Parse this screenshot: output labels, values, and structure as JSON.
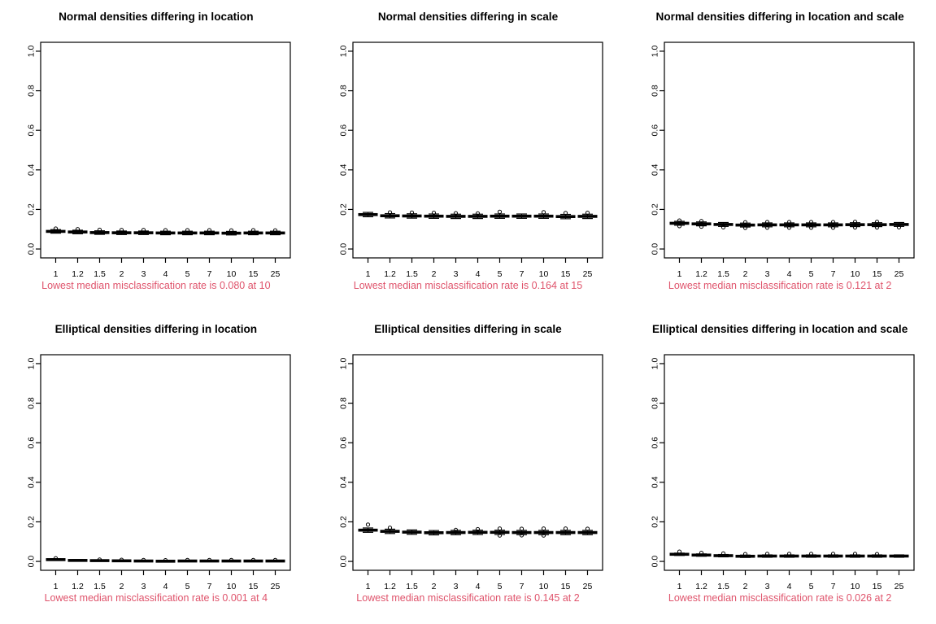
{
  "figure": {
    "rows": 2,
    "cols": 3,
    "background": "#ffffff"
  },
  "colors": {
    "subtitle": "#DF536B",
    "axis": "#000000",
    "box_fill": "#777777",
    "box_stroke": "#000000",
    "median": "#000000",
    "text": "#000000"
  },
  "chart_data": [
    {
      "type": "boxplot",
      "title": "Normal densities differing in location",
      "subtitle": "Lowest median misclassification rate is 0.080 at 10",
      "lowest": {
        "rate": "0.080",
        "at": "10"
      },
      "categories": [
        "1",
        "1.2",
        "1.5",
        "2",
        "3",
        "4",
        "5",
        "7",
        "10",
        "15",
        "25"
      ],
      "ylim": [
        0,
        1
      ],
      "ytick_labels": [
        "0.0",
        "0.2",
        "0.4",
        "0.6",
        "0.8",
        "1.0"
      ],
      "yticks": [
        0,
        0.2,
        0.4,
        0.6,
        0.8,
        1.0
      ],
      "grid": false,
      "boxes": [
        {
          "med": 0.089,
          "q1": 0.086,
          "q3": 0.092,
          "lo": 0.08,
          "hi": 0.098,
          "out": [
            0.103
          ]
        },
        {
          "med": 0.086,
          "q1": 0.083,
          "q3": 0.089,
          "lo": 0.077,
          "hi": 0.095,
          "out": [
            0.1
          ]
        },
        {
          "med": 0.083,
          "q1": 0.08,
          "q3": 0.086,
          "lo": 0.074,
          "hi": 0.092,
          "out": [
            0.097
          ]
        },
        {
          "med": 0.082,
          "q1": 0.079,
          "q3": 0.085,
          "lo": 0.073,
          "hi": 0.091,
          "out": [
            0.096
          ]
        },
        {
          "med": 0.082,
          "q1": 0.079,
          "q3": 0.085,
          "lo": 0.073,
          "hi": 0.091,
          "out": [
            0.096
          ]
        },
        {
          "med": 0.081,
          "q1": 0.078,
          "q3": 0.084,
          "lo": 0.072,
          "hi": 0.09,
          "out": [
            0.095
          ]
        },
        {
          "med": 0.081,
          "q1": 0.078,
          "q3": 0.084,
          "lo": 0.072,
          "hi": 0.09,
          "out": [
            0.095
          ]
        },
        {
          "med": 0.081,
          "q1": 0.078,
          "q3": 0.084,
          "lo": 0.072,
          "hi": 0.09,
          "out": [
            0.095
          ]
        },
        {
          "med": 0.08,
          "q1": 0.077,
          "q3": 0.083,
          "lo": 0.071,
          "hi": 0.089,
          "out": [
            0.094
          ]
        },
        {
          "med": 0.081,
          "q1": 0.078,
          "q3": 0.084,
          "lo": 0.072,
          "hi": 0.09,
          "out": [
            0.095
          ]
        },
        {
          "med": 0.081,
          "q1": 0.078,
          "q3": 0.084,
          "lo": 0.072,
          "hi": 0.09,
          "out": [
            0.094
          ]
        }
      ]
    },
    {
      "type": "boxplot",
      "title": "Normal densities differing in scale",
      "subtitle": "Lowest median misclassification rate is 0.164 at 15",
      "lowest": {
        "rate": "0.164",
        "at": "15"
      },
      "categories": [
        "1",
        "1.2",
        "1.5",
        "2",
        "3",
        "4",
        "5",
        "7",
        "10",
        "15",
        "25"
      ],
      "ylim": [
        0,
        1
      ],
      "ytick_labels": [
        "0.0",
        "0.2",
        "0.4",
        "0.6",
        "0.8",
        "1.0"
      ],
      "yticks": [
        0,
        0.2,
        0.4,
        0.6,
        0.8,
        1.0
      ],
      "grid": false,
      "boxes": [
        {
          "med": 0.174,
          "q1": 0.17,
          "q3": 0.178,
          "lo": 0.163,
          "hi": 0.185,
          "out": []
        },
        {
          "med": 0.168,
          "q1": 0.164,
          "q3": 0.172,
          "lo": 0.157,
          "hi": 0.179,
          "out": [
            0.185
          ]
        },
        {
          "med": 0.167,
          "q1": 0.163,
          "q3": 0.171,
          "lo": 0.156,
          "hi": 0.178,
          "out": [
            0.184
          ]
        },
        {
          "med": 0.166,
          "q1": 0.162,
          "q3": 0.17,
          "lo": 0.155,
          "hi": 0.177,
          "out": [
            0.183
          ]
        },
        {
          "med": 0.165,
          "q1": 0.161,
          "q3": 0.169,
          "lo": 0.154,
          "hi": 0.176,
          "out": [
            0.181
          ]
        },
        {
          "med": 0.165,
          "q1": 0.161,
          "q3": 0.169,
          "lo": 0.154,
          "hi": 0.176,
          "out": [
            0.18
          ]
        },
        {
          "med": 0.166,
          "q1": 0.162,
          "q3": 0.17,
          "lo": 0.155,
          "hi": 0.177,
          "out": [
            0.188
          ]
        },
        {
          "med": 0.166,
          "q1": 0.162,
          "q3": 0.17,
          "lo": 0.155,
          "hi": 0.177,
          "out": []
        },
        {
          "med": 0.166,
          "q1": 0.162,
          "q3": 0.17,
          "lo": 0.155,
          "hi": 0.177,
          "out": [
            0.186
          ]
        },
        {
          "med": 0.164,
          "q1": 0.16,
          "q3": 0.168,
          "lo": 0.153,
          "hi": 0.175,
          "out": [
            0.182
          ]
        },
        {
          "med": 0.165,
          "q1": 0.161,
          "q3": 0.169,
          "lo": 0.154,
          "hi": 0.176,
          "out": [
            0.183
          ]
        }
      ]
    },
    {
      "type": "boxplot",
      "title": "Normal densities differing in location and scale",
      "subtitle": "Lowest median misclassification rate is 0.121 at 2",
      "lowest": {
        "rate": "0.121",
        "at": "2"
      },
      "categories": [
        "1",
        "1.2",
        "1.5",
        "2",
        "3",
        "4",
        "5",
        "7",
        "10",
        "15",
        "25"
      ],
      "ylim": [
        0,
        1
      ],
      "ytick_labels": [
        "0.0",
        "0.2",
        "0.4",
        "0.6",
        "0.8",
        "1.0"
      ],
      "yticks": [
        0,
        0.2,
        0.4,
        0.6,
        0.8,
        1.0
      ],
      "grid": false,
      "boxes": [
        {
          "med": 0.13,
          "q1": 0.126,
          "q3": 0.134,
          "lo": 0.12,
          "hi": 0.14,
          "out": [
            0.144,
            0.116
          ]
        },
        {
          "med": 0.127,
          "q1": 0.123,
          "q3": 0.131,
          "lo": 0.117,
          "hi": 0.137,
          "out": [
            0.141,
            0.113
          ]
        },
        {
          "med": 0.124,
          "q1": 0.12,
          "q3": 0.128,
          "lo": 0.114,
          "hi": 0.134,
          "out": [
            0.11
          ]
        },
        {
          "med": 0.121,
          "q1": 0.117,
          "q3": 0.125,
          "lo": 0.111,
          "hi": 0.131,
          "out": [
            0.135,
            0.107
          ]
        },
        {
          "med": 0.122,
          "q1": 0.118,
          "q3": 0.126,
          "lo": 0.112,
          "hi": 0.132,
          "out": [
            0.136,
            0.108
          ]
        },
        {
          "med": 0.122,
          "q1": 0.118,
          "q3": 0.126,
          "lo": 0.112,
          "hi": 0.132,
          "out": [
            0.136,
            0.108
          ]
        },
        {
          "med": 0.122,
          "q1": 0.118,
          "q3": 0.126,
          "lo": 0.112,
          "hi": 0.132,
          "out": [
            0.136,
            0.108
          ]
        },
        {
          "med": 0.122,
          "q1": 0.118,
          "q3": 0.126,
          "lo": 0.112,
          "hi": 0.132,
          "out": [
            0.136,
            0.108
          ]
        },
        {
          "med": 0.123,
          "q1": 0.119,
          "q3": 0.127,
          "lo": 0.113,
          "hi": 0.133,
          "out": [
            0.137,
            0.109
          ]
        },
        {
          "med": 0.123,
          "q1": 0.119,
          "q3": 0.127,
          "lo": 0.113,
          "hi": 0.133,
          "out": [
            0.137,
            0.109
          ]
        },
        {
          "med": 0.124,
          "q1": 0.12,
          "q3": 0.128,
          "lo": 0.114,
          "hi": 0.134,
          "out": [
            0.11
          ]
        }
      ]
    },
    {
      "type": "boxplot",
      "title": "Elliptical densities differing in location",
      "subtitle": "Lowest median misclassification rate is 0.001 at 4",
      "lowest": {
        "rate": "0.001",
        "at": "4"
      },
      "categories": [
        "1",
        "1.2",
        "1.5",
        "2",
        "3",
        "4",
        "5",
        "7",
        "10",
        "15",
        "25"
      ],
      "ylim": [
        0,
        1
      ],
      "ytick_labels": [
        "0.0",
        "0.2",
        "0.4",
        "0.6",
        "0.8",
        "1.0"
      ],
      "yticks": [
        0,
        0.2,
        0.4,
        0.6,
        0.8,
        1.0
      ],
      "grid": false,
      "boxes": [
        {
          "med": 0.009,
          "q1": 0.007,
          "q3": 0.011,
          "lo": 0.005,
          "hi": 0.013,
          "out": [
            0.016
          ]
        },
        {
          "med": 0.005,
          "q1": 0.004,
          "q3": 0.007,
          "lo": 0.002,
          "hi": 0.009,
          "out": []
        },
        {
          "med": 0.004,
          "q1": 0.003,
          "q3": 0.005,
          "lo": 0.001,
          "hi": 0.007,
          "out": [
            0.009
          ]
        },
        {
          "med": 0.003,
          "q1": 0.002,
          "q3": 0.004,
          "lo": 0.001,
          "hi": 0.006,
          "out": [
            0.008
          ]
        },
        {
          "med": 0.002,
          "q1": 0.001,
          "q3": 0.004,
          "lo": 0.0,
          "hi": 0.005,
          "out": [
            0.007
          ]
        },
        {
          "med": 0.001,
          "q1": 0.0,
          "q3": 0.002,
          "lo": 0.0,
          "hi": 0.004,
          "out": [
            0.006
          ]
        },
        {
          "med": 0.002,
          "q1": 0.001,
          "q3": 0.004,
          "lo": 0.0,
          "hi": 0.005,
          "out": [
            0.007
          ]
        },
        {
          "med": 0.002,
          "q1": 0.001,
          "q3": 0.004,
          "lo": 0.0,
          "hi": 0.005,
          "out": [
            0.007
          ]
        },
        {
          "med": 0.002,
          "q1": 0.001,
          "q3": 0.003,
          "lo": 0.0,
          "hi": 0.005,
          "out": [
            0.007
          ]
        },
        {
          "med": 0.002,
          "q1": 0.001,
          "q3": 0.003,
          "lo": 0.0,
          "hi": 0.005,
          "out": [
            0.007
          ]
        },
        {
          "med": 0.002,
          "q1": 0.001,
          "q3": 0.003,
          "lo": 0.0,
          "hi": 0.005,
          "out": [
            0.007
          ]
        }
      ]
    },
    {
      "type": "boxplot",
      "title": "Elliptical densities differing in scale",
      "subtitle": "Lowest median misclassification rate is 0.145 at 2",
      "lowest": {
        "rate": "0.145",
        "at": "2"
      },
      "categories": [
        "1",
        "1.2",
        "1.5",
        "2",
        "3",
        "4",
        "5",
        "7",
        "10",
        "15",
        "25"
      ],
      "ylim": [
        0,
        1
      ],
      "ytick_labels": [
        "0.0",
        "0.2",
        "0.4",
        "0.6",
        "0.8",
        "1.0"
      ],
      "yticks": [
        0,
        0.2,
        0.4,
        0.6,
        0.8,
        1.0
      ],
      "grid": false,
      "boxes": [
        {
          "med": 0.158,
          "q1": 0.154,
          "q3": 0.162,
          "lo": 0.147,
          "hi": 0.169,
          "out": [
            0.186
          ]
        },
        {
          "med": 0.152,
          "q1": 0.148,
          "q3": 0.156,
          "lo": 0.141,
          "hi": 0.163,
          "out": [
            0.17
          ]
        },
        {
          "med": 0.148,
          "q1": 0.144,
          "q3": 0.152,
          "lo": 0.137,
          "hi": 0.159,
          "out": []
        },
        {
          "med": 0.145,
          "q1": 0.141,
          "q3": 0.149,
          "lo": 0.134,
          "hi": 0.156,
          "out": []
        },
        {
          "med": 0.146,
          "q1": 0.142,
          "q3": 0.15,
          "lo": 0.135,
          "hi": 0.157,
          "out": [
            0.159
          ]
        },
        {
          "med": 0.147,
          "q1": 0.143,
          "q3": 0.151,
          "lo": 0.136,
          "hi": 0.158,
          "out": [
            0.163
          ]
        },
        {
          "med": 0.147,
          "q1": 0.143,
          "q3": 0.151,
          "lo": 0.136,
          "hi": 0.158,
          "out": [
            0.166,
            0.131
          ]
        },
        {
          "med": 0.146,
          "q1": 0.142,
          "q3": 0.15,
          "lo": 0.135,
          "hi": 0.157,
          "out": [
            0.165,
            0.132
          ]
        },
        {
          "med": 0.146,
          "q1": 0.142,
          "q3": 0.15,
          "lo": 0.135,
          "hi": 0.157,
          "out": [
            0.166,
            0.131
          ]
        },
        {
          "med": 0.146,
          "q1": 0.142,
          "q3": 0.15,
          "lo": 0.135,
          "hi": 0.157,
          "out": [
            0.166
          ]
        },
        {
          "med": 0.146,
          "q1": 0.142,
          "q3": 0.15,
          "lo": 0.135,
          "hi": 0.157,
          "out": [
            0.165
          ]
        }
      ]
    },
    {
      "type": "boxplot",
      "title": "Elliptical densities differing in location and scale",
      "subtitle": "Lowest median misclassification rate is 0.026 at 2",
      "lowest": {
        "rate": "0.026",
        "at": "2"
      },
      "categories": [
        "1",
        "1.2",
        "1.5",
        "2",
        "3",
        "4",
        "5",
        "7",
        "10",
        "15",
        "25"
      ],
      "ylim": [
        0,
        1
      ],
      "ytick_labels": [
        "0.0",
        "0.2",
        "0.4",
        "0.6",
        "0.8",
        "1.0"
      ],
      "yticks": [
        0,
        0.2,
        0.4,
        0.6,
        0.8,
        1.0
      ],
      "grid": false,
      "boxes": [
        {
          "med": 0.036,
          "q1": 0.033,
          "q3": 0.039,
          "lo": 0.03,
          "hi": 0.042,
          "out": [
            0.049
          ]
        },
        {
          "med": 0.032,
          "q1": 0.029,
          "q3": 0.035,
          "lo": 0.026,
          "hi": 0.038,
          "out": [
            0.043
          ]
        },
        {
          "med": 0.029,
          "q1": 0.026,
          "q3": 0.032,
          "lo": 0.023,
          "hi": 0.035,
          "out": [
            0.04
          ]
        },
        {
          "med": 0.026,
          "q1": 0.023,
          "q3": 0.029,
          "lo": 0.02,
          "hi": 0.032,
          "out": [
            0.037
          ]
        },
        {
          "med": 0.027,
          "q1": 0.024,
          "q3": 0.03,
          "lo": 0.021,
          "hi": 0.033,
          "out": [
            0.038
          ]
        },
        {
          "med": 0.027,
          "q1": 0.024,
          "q3": 0.03,
          "lo": 0.021,
          "hi": 0.033,
          "out": [
            0.038
          ]
        },
        {
          "med": 0.027,
          "q1": 0.024,
          "q3": 0.03,
          "lo": 0.021,
          "hi": 0.033,
          "out": [
            0.038
          ]
        },
        {
          "med": 0.027,
          "q1": 0.024,
          "q3": 0.03,
          "lo": 0.021,
          "hi": 0.033,
          "out": [
            0.038
          ]
        },
        {
          "med": 0.027,
          "q1": 0.024,
          "q3": 0.03,
          "lo": 0.021,
          "hi": 0.033,
          "out": [
            0.038
          ]
        },
        {
          "med": 0.027,
          "q1": 0.024,
          "q3": 0.03,
          "lo": 0.021,
          "hi": 0.033,
          "out": [
            0.037
          ]
        },
        {
          "med": 0.027,
          "q1": 0.024,
          "q3": 0.03,
          "lo": 0.021,
          "hi": 0.033,
          "out": []
        }
      ]
    }
  ]
}
